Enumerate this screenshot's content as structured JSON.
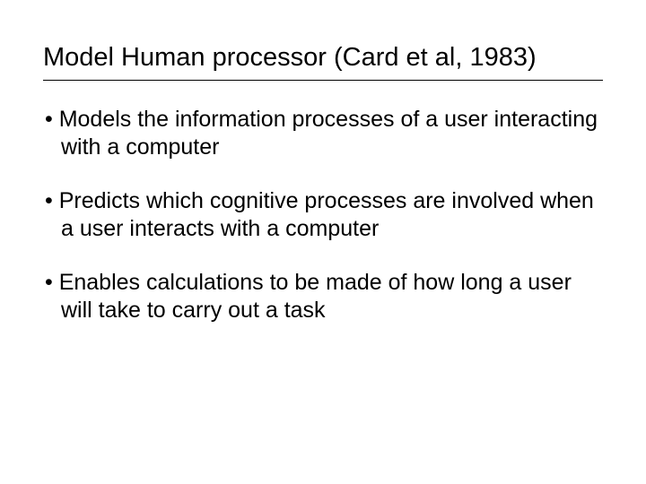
{
  "slide": {
    "title": "Model Human processor (Card et al, 1983)",
    "bullets": [
      "Models the information processes of a user interacting with a computer",
      "Predicts which cognitive processes are involved when a user interacts with a computer",
      "Enables calculations to be made of how long a user will take to carry out a task"
    ]
  },
  "styling": {
    "background_color": "#ffffff",
    "text_color": "#000000",
    "title_fontsize": 29,
    "bullet_fontsize": 25,
    "font_family": "Arial",
    "rule_color": "#000000",
    "rule_width": 1
  }
}
